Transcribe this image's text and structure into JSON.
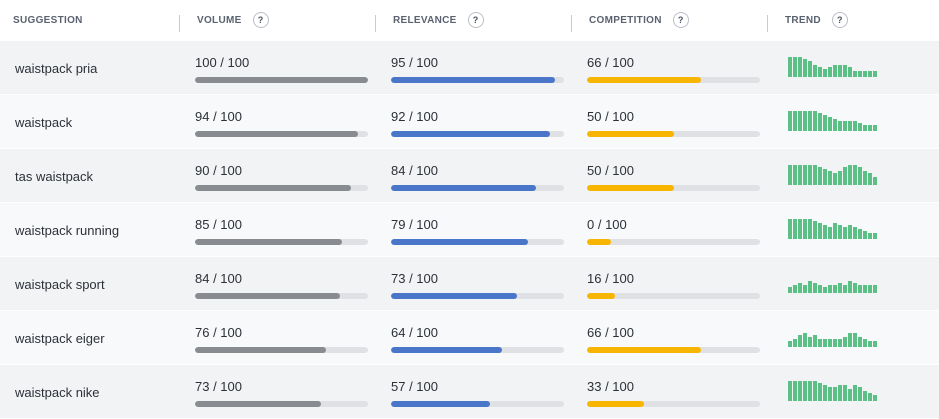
{
  "header": {
    "suggestion": "SUGGESTION",
    "volume": "VOLUME",
    "relevance": "RELEVANCE",
    "competition": "COMPETITION",
    "trend": "TREND",
    "help": "?"
  },
  "colors": {
    "volume": "#888b8f",
    "relevance": "#4a76c9",
    "competition": "#f7b500",
    "trend": "#5cc086"
  },
  "rows": [
    {
      "keyword": "waistpack pria",
      "volume": 100,
      "relevance": 95,
      "competition": 66,
      "volume_text": "100 / 100",
      "relevance_text": "95 / 100",
      "competition_text": "66 / 100",
      "trend": [
        10,
        10,
        10,
        9,
        8,
        6,
        5,
        4,
        5,
        6,
        6,
        6,
        5,
        3,
        3,
        3,
        3,
        3
      ]
    },
    {
      "keyword": "waistpack",
      "volume": 94,
      "relevance": 92,
      "competition": 50,
      "volume_text": "94 / 100",
      "relevance_text": "92 / 100",
      "competition_text": "50 / 100",
      "trend": [
        10,
        10,
        10,
        10,
        10,
        10,
        9,
        8,
        7,
        6,
        5,
        5,
        5,
        5,
        4,
        3,
        3,
        3
      ]
    },
    {
      "keyword": "tas waistpack",
      "volume": 90,
      "relevance": 84,
      "competition": 50,
      "volume_text": "90 / 100",
      "relevance_text": "84 / 100",
      "competition_text": "50 / 100",
      "trend": [
        10,
        10,
        10,
        10,
        10,
        10,
        9,
        8,
        7,
        6,
        7,
        9,
        10,
        10,
        9,
        7,
        6,
        4
      ]
    },
    {
      "keyword": "waistpack running",
      "volume": 85,
      "relevance": 79,
      "competition": 0,
      "volume_text": "85 / 100",
      "relevance_text": "79 / 100",
      "competition_text": "0 / 100",
      "trend": [
        10,
        10,
        10,
        10,
        10,
        9,
        8,
        7,
        6,
        8,
        7,
        6,
        7,
        6,
        5,
        4,
        3,
        3
      ]
    },
    {
      "keyword": "waistpack sport",
      "volume": 84,
      "relevance": 73,
      "competition": 16,
      "volume_text": "84 / 100",
      "relevance_text": "73 / 100",
      "competition_text": "16 / 100",
      "trend": [
        3,
        4,
        5,
        4,
        6,
        5,
        4,
        3,
        4,
        4,
        5,
        4,
        6,
        5,
        4,
        4,
        4,
        4
      ]
    },
    {
      "keyword": "waistpack eiger",
      "volume": 76,
      "relevance": 64,
      "competition": 66,
      "volume_text": "76 / 100",
      "relevance_text": "64 / 100",
      "competition_text": "66 / 100",
      "trend": [
        3,
        4,
        6,
        7,
        5,
        6,
        4,
        4,
        4,
        4,
        4,
        5,
        7,
        7,
        5,
        4,
        3,
        3
      ]
    },
    {
      "keyword": "waistpack nike",
      "volume": 73,
      "relevance": 57,
      "competition": 33,
      "volume_text": "73 / 100",
      "relevance_text": "57 / 100",
      "competition_text": "33 / 100",
      "trend": [
        10,
        10,
        10,
        10,
        10,
        10,
        9,
        8,
        7,
        7,
        8,
        8,
        6,
        8,
        7,
        5,
        4,
        3
      ]
    }
  ]
}
